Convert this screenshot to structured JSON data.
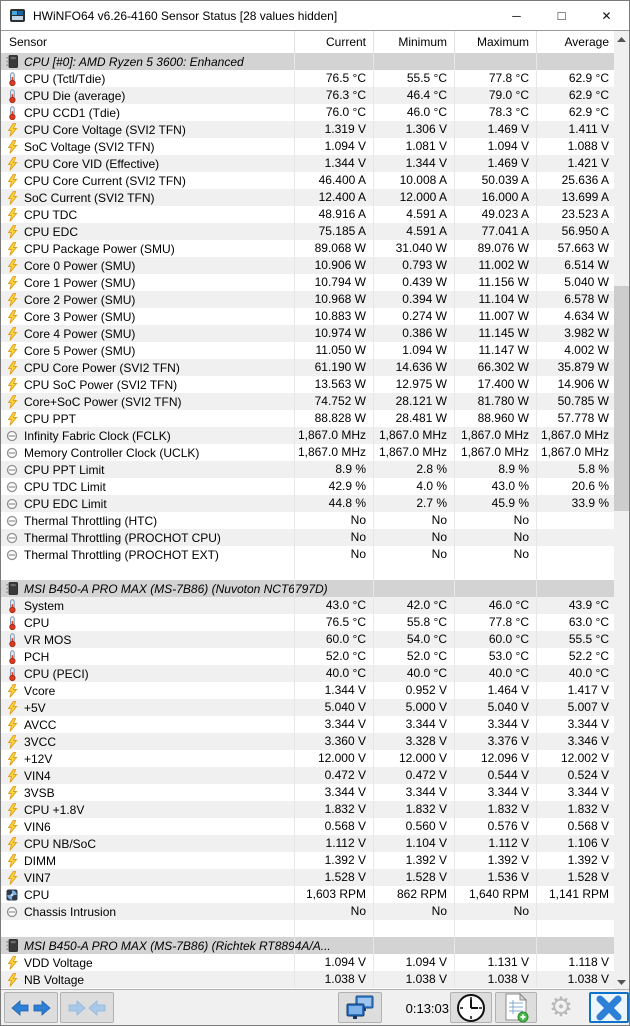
{
  "window": {
    "title": "HWiNFO64 v6.26-4160 Sensor Status [28 values hidden]",
    "controls": {
      "minimize": "─",
      "maximize": "□",
      "close": "✕"
    }
  },
  "table": {
    "columns": [
      "Sensor",
      "Current",
      "Minimum",
      "Maximum",
      "Average"
    ],
    "sections": [
      {
        "title": "CPU [#0]: AMD Ryzen 5 3600: Enhanced",
        "icon": "chip-icon",
        "rows": [
          {
            "icon": "temperature-icon",
            "label": "CPU (Tctl/Tdie)",
            "current": "76.5 °C",
            "minimum": "55.5 °C",
            "maximum": "77.8 °C",
            "average": "62.9 °C"
          },
          {
            "icon": "temperature-icon",
            "label": "CPU Die (average)",
            "current": "76.3 °C",
            "minimum": "46.4 °C",
            "maximum": "79.0 °C",
            "average": "62.9 °C"
          },
          {
            "icon": "temperature-icon",
            "label": "CPU CCD1 (Tdie)",
            "current": "76.0 °C",
            "minimum": "46.0 °C",
            "maximum": "78.3 °C",
            "average": "62.9 °C"
          },
          {
            "icon": "voltage-icon",
            "label": "CPU Core Voltage (SVI2 TFN)",
            "current": "1.319 V",
            "minimum": "1.306 V",
            "maximum": "1.469 V",
            "average": "1.411 V"
          },
          {
            "icon": "voltage-icon",
            "label": "SoC Voltage (SVI2 TFN)",
            "current": "1.094 V",
            "minimum": "1.081 V",
            "maximum": "1.094 V",
            "average": "1.088 V"
          },
          {
            "icon": "voltage-icon",
            "label": "CPU Core VID (Effective)",
            "current": "1.344 V",
            "minimum": "1.344 V",
            "maximum": "1.469 V",
            "average": "1.421 V"
          },
          {
            "icon": "voltage-icon",
            "label": "CPU Core Current (SVI2 TFN)",
            "current": "46.400 A",
            "minimum": "10.008 A",
            "maximum": "50.039 A",
            "average": "25.636 A"
          },
          {
            "icon": "voltage-icon",
            "label": "SoC Current (SVI2 TFN)",
            "current": "12.400 A",
            "minimum": "12.000 A",
            "maximum": "16.000 A",
            "average": "13.699 A"
          },
          {
            "icon": "voltage-icon",
            "label": "CPU TDC",
            "current": "48.916 A",
            "minimum": "4.591 A",
            "maximum": "49.023 A",
            "average": "23.523 A"
          },
          {
            "icon": "voltage-icon",
            "label": "CPU EDC",
            "current": "75.185 A",
            "minimum": "4.591 A",
            "maximum": "77.041 A",
            "average": "56.950 A"
          },
          {
            "icon": "voltage-icon",
            "label": "CPU Package Power (SMU)",
            "current": "89.068 W",
            "minimum": "31.040 W",
            "maximum": "89.076 W",
            "average": "57.663 W"
          },
          {
            "icon": "voltage-icon",
            "label": "Core 0 Power (SMU)",
            "current": "10.906 W",
            "minimum": "0.793 W",
            "maximum": "11.002 W",
            "average": "6.514 W"
          },
          {
            "icon": "voltage-icon",
            "label": "Core 1 Power (SMU)",
            "current": "10.794 W",
            "minimum": "0.439 W",
            "maximum": "11.156 W",
            "average": "5.040 W"
          },
          {
            "icon": "voltage-icon",
            "label": "Core 2 Power (SMU)",
            "current": "10.968 W",
            "minimum": "0.394 W",
            "maximum": "11.104 W",
            "average": "6.578 W"
          },
          {
            "icon": "voltage-icon",
            "label": "Core 3 Power (SMU)",
            "current": "10.883 W",
            "minimum": "0.274 W",
            "maximum": "11.007 W",
            "average": "4.634 W"
          },
          {
            "icon": "voltage-icon",
            "label": "Core 4 Power (SMU)",
            "current": "10.974 W",
            "minimum": "0.386 W",
            "maximum": "11.145 W",
            "average": "3.982 W"
          },
          {
            "icon": "voltage-icon",
            "label": "Core 5 Power (SMU)",
            "current": "11.050 W",
            "minimum": "1.094 W",
            "maximum": "11.147 W",
            "average": "4.002 W"
          },
          {
            "icon": "voltage-icon",
            "label": "CPU Core Power (SVI2 TFN)",
            "current": "61.190 W",
            "minimum": "14.636 W",
            "maximum": "66.302 W",
            "average": "35.879 W"
          },
          {
            "icon": "voltage-icon",
            "label": "CPU SoC Power (SVI2 TFN)",
            "current": "13.563 W",
            "minimum": "12.975 W",
            "maximum": "17.400 W",
            "average": "14.906 W"
          },
          {
            "icon": "voltage-icon",
            "label": "Core+SoC Power (SVI2 TFN)",
            "current": "74.752 W",
            "minimum": "28.121 W",
            "maximum": "81.780 W",
            "average": "50.785 W"
          },
          {
            "icon": "voltage-icon",
            "label": "CPU PPT",
            "current": "88.828 W",
            "minimum": "28.481 W",
            "maximum": "88.960 W",
            "average": "57.778 W"
          },
          {
            "icon": "status-icon",
            "label": "Infinity Fabric Clock (FCLK)",
            "current": "1,867.0 MHz",
            "minimum": "1,867.0 MHz",
            "maximum": "1,867.0 MHz",
            "average": "1,867.0 MHz"
          },
          {
            "icon": "status-icon",
            "label": "Memory Controller Clock (UCLK)",
            "current": "1,867.0 MHz",
            "minimum": "1,867.0 MHz",
            "maximum": "1,867.0 MHz",
            "average": "1,867.0 MHz"
          },
          {
            "icon": "status-icon",
            "label": "CPU PPT Limit",
            "current": "8.9 %",
            "minimum": "2.8 %",
            "maximum": "8.9 %",
            "average": "5.8 %"
          },
          {
            "icon": "status-icon",
            "label": "CPU TDC Limit",
            "current": "42.9 %",
            "minimum": "4.0 %",
            "maximum": "43.0 %",
            "average": "20.6 %"
          },
          {
            "icon": "status-icon",
            "label": "CPU EDC Limit",
            "current": "44.8 %",
            "minimum": "2.7 %",
            "maximum": "45.9 %",
            "average": "33.9 %"
          },
          {
            "icon": "status-icon",
            "label": "Thermal Throttling (HTC)",
            "current": "No",
            "minimum": "No",
            "maximum": "No",
            "average": ""
          },
          {
            "icon": "status-icon",
            "label": "Thermal Throttling (PROCHOT CPU)",
            "current": "No",
            "minimum": "No",
            "maximum": "No",
            "average": ""
          },
          {
            "icon": "status-icon",
            "label": "Thermal Throttling (PROCHOT EXT)",
            "current": "No",
            "minimum": "No",
            "maximum": "No",
            "average": ""
          }
        ]
      },
      {
        "title": "MSI B450-A PRO MAX (MS-7B86) (Nuvoton NCT6797D)",
        "icon": "chip-icon",
        "rows": [
          {
            "icon": "temperature-icon",
            "label": "System",
            "current": "43.0 °C",
            "minimum": "42.0 °C",
            "maximum": "46.0 °C",
            "average": "43.9 °C"
          },
          {
            "icon": "temperature-icon",
            "label": "CPU",
            "current": "76.5 °C",
            "minimum": "55.8 °C",
            "maximum": "77.8 °C",
            "average": "63.0 °C"
          },
          {
            "icon": "temperature-icon",
            "label": "VR MOS",
            "current": "60.0 °C",
            "minimum": "54.0 °C",
            "maximum": "60.0 °C",
            "average": "55.5 °C"
          },
          {
            "icon": "temperature-icon",
            "label": "PCH",
            "current": "52.0 °C",
            "minimum": "52.0 °C",
            "maximum": "53.0 °C",
            "average": "52.2 °C"
          },
          {
            "icon": "temperature-icon",
            "label": "CPU (PECI)",
            "current": "40.0 °C",
            "minimum": "40.0 °C",
            "maximum": "40.0 °C",
            "average": "40.0 °C"
          },
          {
            "icon": "voltage-icon",
            "label": "Vcore",
            "current": "1.344 V",
            "minimum": "0.952 V",
            "maximum": "1.464 V",
            "average": "1.417 V"
          },
          {
            "icon": "voltage-icon",
            "label": "+5V",
            "current": "5.040 V",
            "minimum": "5.000 V",
            "maximum": "5.040 V",
            "average": "5.007 V"
          },
          {
            "icon": "voltage-icon",
            "label": "AVCC",
            "current": "3.344 V",
            "minimum": "3.344 V",
            "maximum": "3.344 V",
            "average": "3.344 V"
          },
          {
            "icon": "voltage-icon",
            "label": "3VCC",
            "current": "3.360 V",
            "minimum": "3.328 V",
            "maximum": "3.376 V",
            "average": "3.346 V"
          },
          {
            "icon": "voltage-icon",
            "label": "+12V",
            "current": "12.000 V",
            "minimum": "12.000 V",
            "maximum": "12.096 V",
            "average": "12.002 V"
          },
          {
            "icon": "voltage-icon",
            "label": "VIN4",
            "current": "0.472 V",
            "minimum": "0.472 V",
            "maximum": "0.544 V",
            "average": "0.524 V"
          },
          {
            "icon": "voltage-icon",
            "label": "3VSB",
            "current": "3.344 V",
            "minimum": "3.344 V",
            "maximum": "3.344 V",
            "average": "3.344 V"
          },
          {
            "icon": "voltage-icon",
            "label": "CPU +1.8V",
            "current": "1.832 V",
            "minimum": "1.832 V",
            "maximum": "1.832 V",
            "average": "1.832 V"
          },
          {
            "icon": "voltage-icon",
            "label": "VIN6",
            "current": "0.568 V",
            "minimum": "0.560 V",
            "maximum": "0.576 V",
            "average": "0.568 V"
          },
          {
            "icon": "voltage-icon",
            "label": "CPU NB/SoC",
            "current": "1.112 V",
            "minimum": "1.104 V",
            "maximum": "1.112 V",
            "average": "1.106 V"
          },
          {
            "icon": "voltage-icon",
            "label": "DIMM",
            "current": "1.392 V",
            "minimum": "1.392 V",
            "maximum": "1.392 V",
            "average": "1.392 V"
          },
          {
            "icon": "voltage-icon",
            "label": "VIN7",
            "current": "1.528 V",
            "minimum": "1.528 V",
            "maximum": "1.536 V",
            "average": "1.528 V"
          },
          {
            "icon": "fan-icon",
            "label": "CPU",
            "current": "1,603 RPM",
            "minimum": "862 RPM",
            "maximum": "1,640 RPM",
            "average": "1,141 RPM"
          },
          {
            "icon": "status-icon",
            "label": "Chassis Intrusion",
            "current": "No",
            "minimum": "No",
            "maximum": "No",
            "average": ""
          }
        ]
      },
      {
        "title": "MSI B450-A PRO MAX (MS-7B86) (Richtek RT8894A/A...",
        "icon": "chip-icon",
        "rows": [
          {
            "icon": "voltage-icon",
            "label": "VDD Voltage",
            "current": "1.094 V",
            "minimum": "1.094 V",
            "maximum": "1.131 V",
            "average": "1.118 V"
          },
          {
            "icon": "voltage-icon",
            "label": "NB Voltage",
            "current": "1.038 V",
            "minimum": "1.038 V",
            "maximum": "1.038 V",
            "average": "1.038 V"
          }
        ]
      }
    ]
  },
  "statusbar": {
    "elapsed_time": "0:13:03",
    "buttons": [
      {
        "name": "swap-columns-button",
        "icon": "arrows-left-right-icon",
        "enabled": true
      },
      {
        "name": "collapse-columns-button",
        "icon": "arrows-inward-icon",
        "enabled": false
      },
      {
        "name": "remote-monitoring-button",
        "icon": "monitors-icon",
        "enabled": true
      },
      {
        "name": "reset-clock-button",
        "icon": "clock-icon",
        "enabled": true
      },
      {
        "name": "logging-start-button",
        "icon": "report-plus-icon",
        "enabled": true
      },
      {
        "name": "settings-button",
        "icon": "gear-icon",
        "enabled": false
      },
      {
        "name": "close-sensors-button",
        "icon": "close-x-icon",
        "enabled": true,
        "focused": true
      }
    ]
  },
  "colors": {
    "accent_blue": "#2e7fd6",
    "bolt_yellow": "#ffd83e",
    "shade_row": "#f0f0f0",
    "section_row": "#d3d3d3",
    "focus_border": "#0f72c9"
  }
}
